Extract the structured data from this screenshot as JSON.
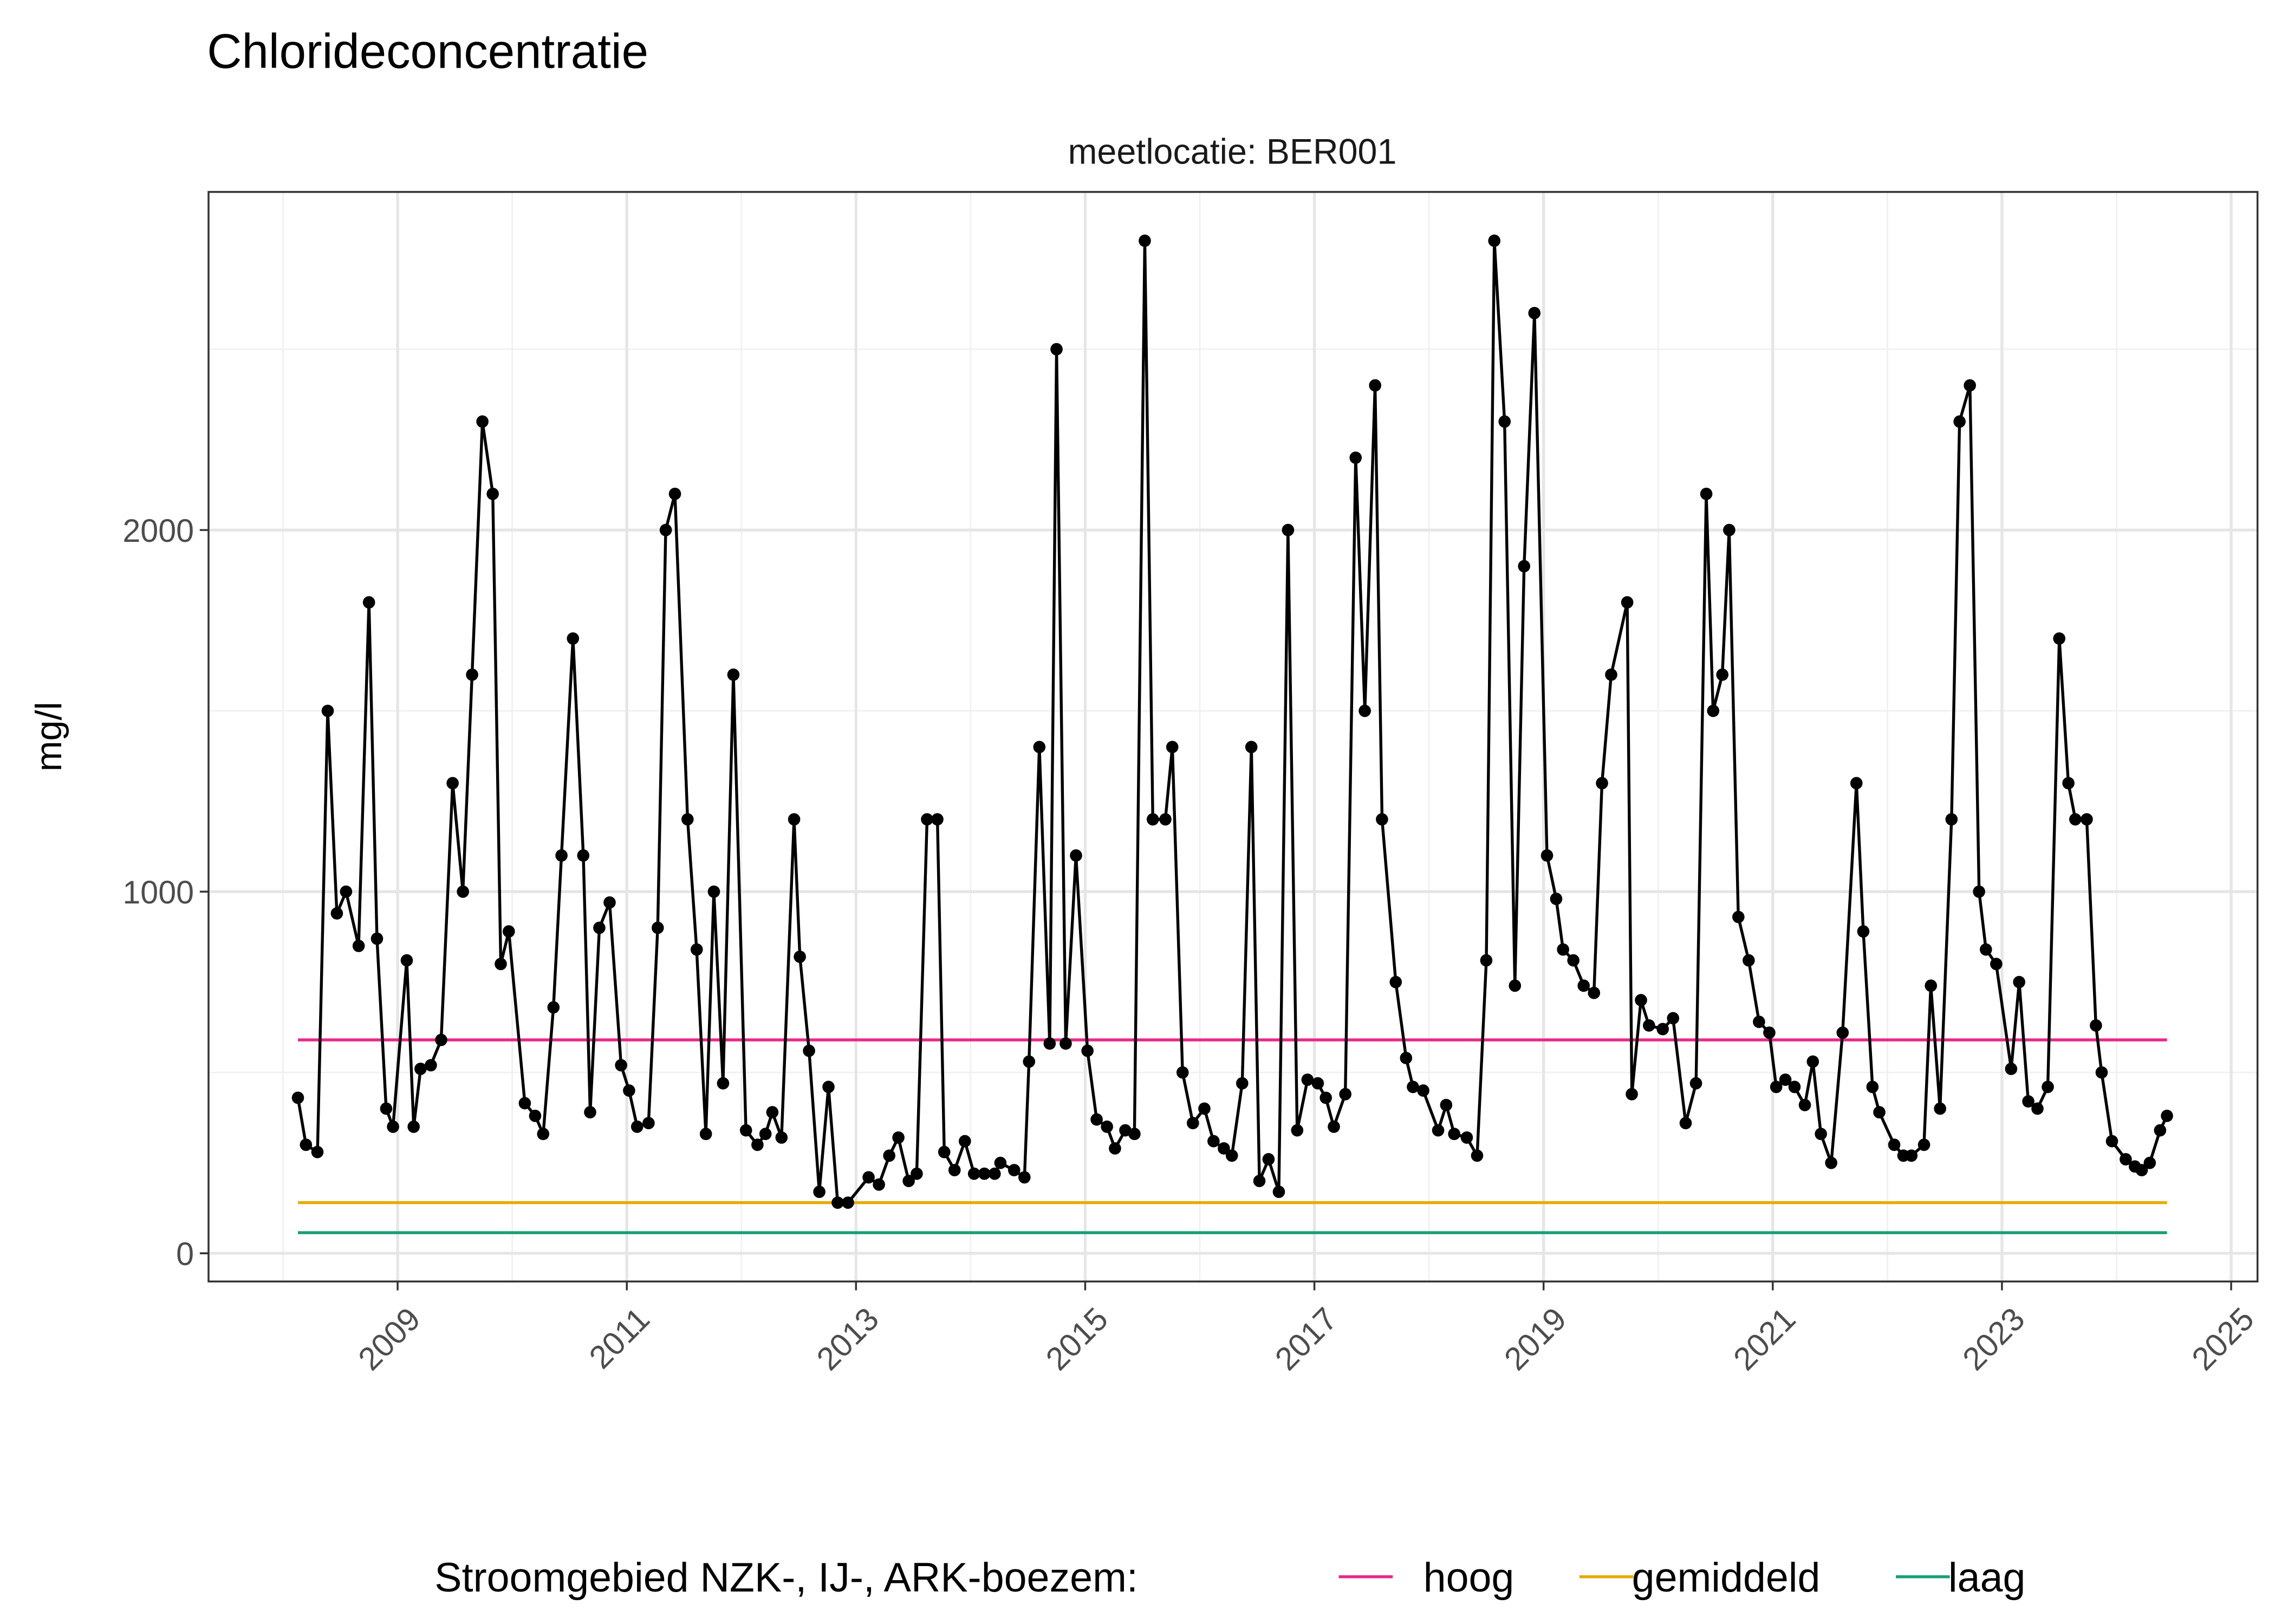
{
  "chart_data": {
    "type": "line",
    "title": "Chlorideconcentratie",
    "facet_label": "meetlocatie: BER001",
    "xlabel": "",
    "ylabel": "mg/l",
    "xlim": [
      2007.35,
      2025.23
    ],
    "ylim": [
      -78,
      2935
    ],
    "x_ticks": [
      "2009",
      "2011",
      "2013",
      "2015",
      "2017",
      "2019",
      "2021",
      "2023",
      "2025"
    ],
    "y_ticks": [
      "0",
      "1000",
      "2000"
    ],
    "grid": true,
    "legend_position": "bottom",
    "legend_title": "Stroomgebied NZK-, IJ-, ARK-boezem:",
    "series": [
      {
        "color": "#000000",
        "markers": true,
        "x": [
          2008.13,
          2008.2,
          2008.3,
          2008.39,
          2008.47,
          2008.55,
          2008.66,
          2008.75,
          2008.82,
          2008.9,
          2008.96,
          2009.08,
          2009.14,
          2009.2,
          2009.29,
          2009.38,
          2009.48,
          2009.57,
          2009.65,
          2009.74,
          2009.83,
          2009.9,
          2009.97,
          2010.11,
          2010.2,
          2010.27,
          2010.36,
          2010.43,
          2010.53,
          2010.62,
          2010.68,
          2010.76,
          2010.85,
          2010.95,
          2011.02,
          2011.09,
          2011.19,
          2011.27,
          2011.34,
          2011.42,
          2011.53,
          2011.61,
          2011.69,
          2011.76,
          2011.84,
          2011.93,
          2012.04,
          2012.14,
          2012.21,
          2012.27,
          2012.35,
          2012.46,
          2012.51,
          2012.59,
          2012.68,
          2012.76,
          2012.84,
          2012.93,
          2013.11,
          2013.2,
          2013.29,
          2013.37,
          2013.46,
          2013.53,
          2013.62,
          2013.71,
          2013.77,
          2013.86,
          2013.95,
          2014.03,
          2014.12,
          2014.21,
          2014.26,
          2014.38,
          2014.47,
          2014.51,
          2014.6,
          2014.69,
          2014.75,
          2014.83,
          2014.92,
          2015.02,
          2015.1,
          2015.19,
          2015.26,
          2015.35,
          2015.43,
          2015.52,
          2015.59,
          2015.7,
          2015.76,
          2015.85,
          2015.94,
          2016.04,
          2016.12,
          2016.21,
          2016.28,
          2016.37,
          2016.45,
          2016.52,
          2016.6,
          2016.69,
          2016.77,
          2016.85,
          2016.94,
          2017.03,
          2017.1,
          2017.17,
          2017.27,
          2017.36,
          2017.44,
          2017.53,
          2017.59,
          2017.71,
          2017.8,
          2017.86,
          2017.95,
          2018.08,
          2018.15,
          2018.22,
          2018.33,
          2018.42,
          2018.5,
          2018.57,
          2018.66,
          2018.75,
          2018.83,
          2018.92,
          2019.03,
          2019.11,
          2019.17,
          2019.26,
          2019.35,
          2019.44,
          2019.51,
          2019.59,
          2019.73,
          2019.77,
          2019.85,
          2019.92,
          2020.04,
          2020.13,
          2020.24,
          2020.33,
          2020.42,
          2020.48,
          2020.56,
          2020.62,
          2020.7,
          2020.79,
          2020.88,
          2020.97,
          2021.03,
          2021.11,
          2021.19,
          2021.28,
          2021.35,
          2021.42,
          2021.51,
          2021.61,
          2021.73,
          2021.79,
          2021.87,
          2021.93,
          2022.06,
          2022.14,
          2022.21,
          2022.32,
          2022.38,
          2022.46,
          2022.56,
          2022.63,
          2022.72,
          2022.8,
          2022.86,
          2022.95,
          2023.08,
          2023.15,
          2023.23,
          2023.31,
          2023.4,
          2023.5,
          2023.58,
          2023.64,
          2023.74,
          2023.82,
          2023.87,
          2023.96,
          2024.08,
          2024.16,
          2024.22,
          2024.29,
          2024.38,
          2024.44
        ],
        "y": [
          430,
          300,
          280,
          1500,
          940,
          1000,
          850,
          1800,
          870,
          400,
          350,
          810,
          350,
          510,
          520,
          590,
          1300,
          1000,
          1600,
          2300,
          2100,
          800,
          890,
          415,
          380,
          330,
          680,
          1100,
          1700,
          1100,
          390,
          900,
          970,
          520,
          450,
          350,
          360,
          900,
          2000,
          2100,
          1200,
          840,
          330,
          1000,
          470,
          1600,
          340,
          300,
          330,
          390,
          320,
          1200,
          820,
          560,
          170,
          460,
          140,
          140,
          210,
          190,
          270,
          320,
          200,
          220,
          1200,
          1200,
          280,
          230,
          310,
          220,
          220,
          220,
          250,
          230,
          210,
          530,
          1400,
          580,
          2500,
          580,
          1100,
          560,
          370,
          350,
          290,
          340,
          330,
          2800,
          1200,
          1200,
          1400,
          500,
          360,
          400,
          310,
          290,
          270,
          470,
          1400,
          200,
          260,
          170,
          2000,
          340,
          480,
          470,
          430,
          350,
          440,
          2200,
          1500,
          2400,
          1200,
          750,
          540,
          460,
          450,
          340,
          410,
          330,
          320,
          270,
          810,
          2800,
          2300,
          740,
          1900,
          2600,
          1100,
          980,
          840,
          810,
          740,
          720,
          1300,
          1600,
          1800,
          440,
          700,
          630,
          620,
          650,
          360,
          470,
          2100,
          1500,
          1600,
          2000,
          930,
          810,
          640,
          610,
          460,
          480,
          460,
          410,
          530,
          330,
          250,
          610,
          1300,
          890,
          460,
          390,
          300,
          270,
          270,
          300,
          740,
          400,
          1200,
          2300,
          2400,
          1000,
          840,
          800,
          510,
          750,
          420,
          400,
          460,
          1700,
          1300,
          1200,
          1200,
          630,
          500,
          310,
          260,
          240,
          230,
          250,
          340,
          380
        ]
      }
    ],
    "reference_lines": [
      {
        "name": "hoog",
        "value": 590,
        "color": "#E7298A"
      },
      {
        "name": "gemiddeld",
        "value": 140,
        "color": "#E6AB02"
      },
      {
        "name": "laag",
        "value": 57,
        "color": "#1B9E77"
      }
    ],
    "reference_x_range": [
      2008.13,
      2024.44
    ]
  }
}
